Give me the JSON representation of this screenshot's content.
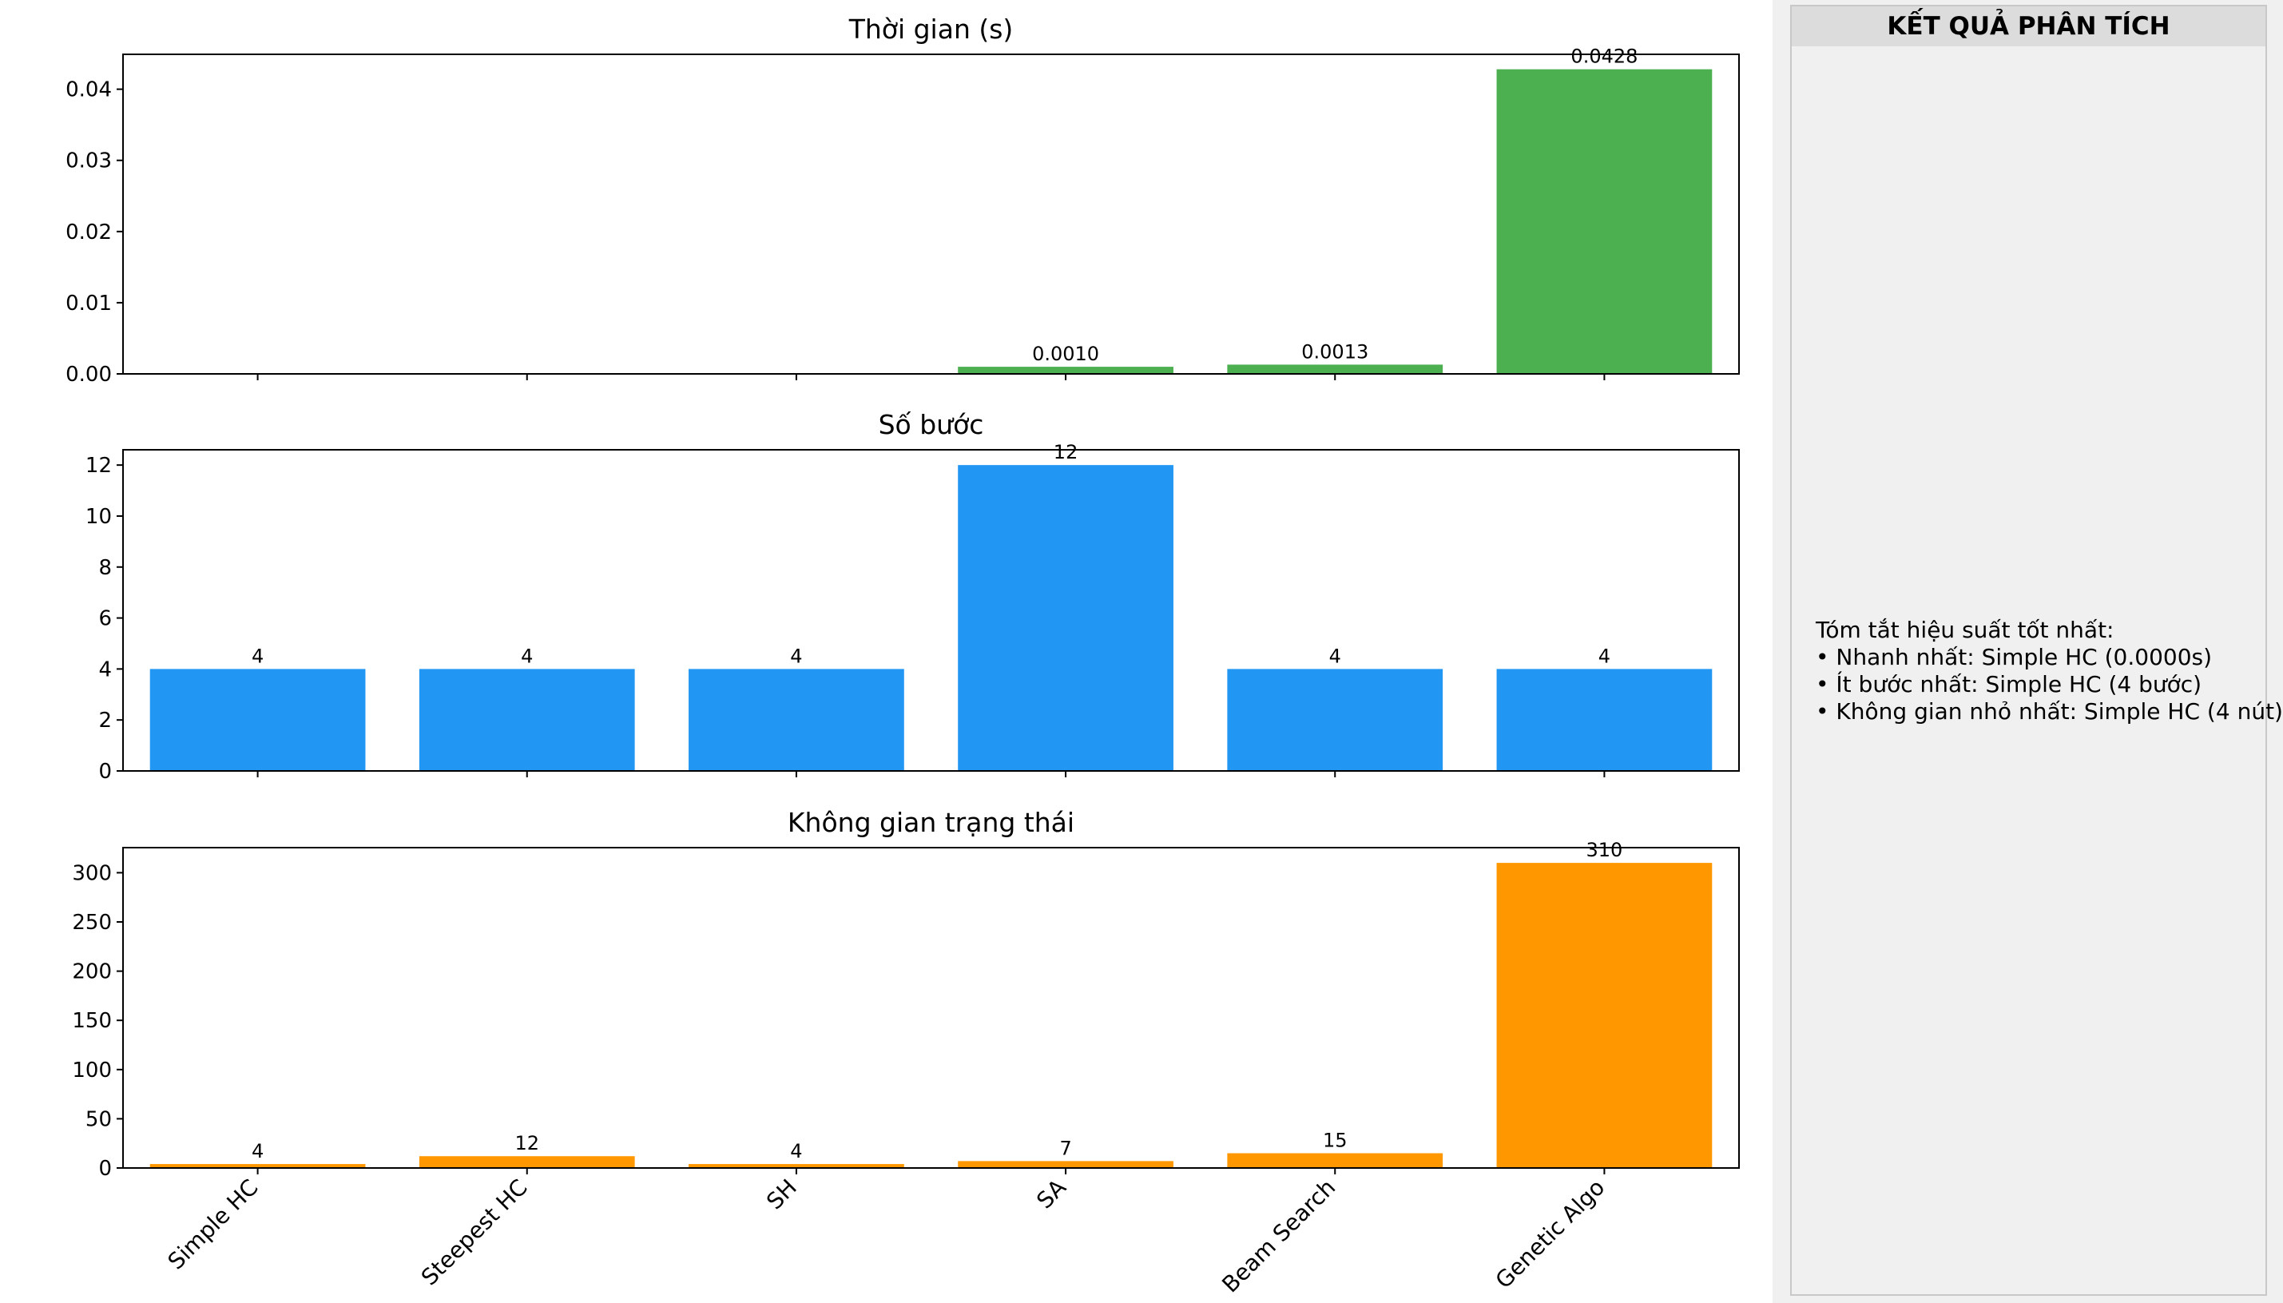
{
  "panel": {
    "title": "KẾT QUẢ PHÂN TÍCH",
    "summary_lines": [
      "Tóm tắt hiệu suất tốt nhất:",
      "• Nhanh nhất: Simple HC (0.0000s)",
      "• Ít bước nhất: Simple HC (4 bước)",
      "• Không gian nhỏ nhất: Simple HC (4 nút)"
    ]
  },
  "chart_data": [
    {
      "type": "bar",
      "title": "Thời gian (s)",
      "categories": [
        "Simple HC",
        "Steepest HC",
        "SH",
        "SA",
        "Beam Search",
        "Genetic Algo"
      ],
      "values": [
        0.0,
        0.0,
        0.0,
        0.001,
        0.0013,
        0.0428
      ],
      "data_labels": [
        "",
        "",
        "",
        "0.0010",
        "0.0013",
        "0.0428"
      ],
      "yticks": [
        "0.00",
        "0.01",
        "0.02",
        "0.03",
        "0.04"
      ],
      "ytick_values": [
        0,
        0.01,
        0.02,
        0.03,
        0.04
      ],
      "ylim": [
        0,
        0.0449
      ],
      "color": "#4caf50",
      "show_xticklabels": false
    },
    {
      "type": "bar",
      "title": "Số bước",
      "categories": [
        "Simple HC",
        "Steepest HC",
        "SH",
        "SA",
        "Beam Search",
        "Genetic Algo"
      ],
      "values": [
        4,
        4,
        4,
        12,
        4,
        4
      ],
      "data_labels": [
        "4",
        "4",
        "4",
        "12",
        "4",
        "4"
      ],
      "yticks": [
        "0",
        "2",
        "4",
        "6",
        "8",
        "10",
        "12"
      ],
      "ytick_values": [
        0,
        2,
        4,
        6,
        8,
        10,
        12
      ],
      "ylim": [
        0,
        12.6
      ],
      "color": "#2196f3",
      "show_xticklabels": false
    },
    {
      "type": "bar",
      "title": "Không gian trạng thái",
      "categories": [
        "Simple HC",
        "Steepest HC",
        "SH",
        "SA",
        "Beam Search",
        "Genetic Algo"
      ],
      "values": [
        4,
        12,
        4,
        7,
        15,
        310
      ],
      "data_labels": [
        "4",
        "12",
        "4",
        "7",
        "15",
        "310"
      ],
      "yticks": [
        "0",
        "50",
        "100",
        "150",
        "200",
        "250",
        "300"
      ],
      "ytick_values": [
        0,
        50,
        100,
        150,
        200,
        250,
        300
      ],
      "ylim": [
        0,
        325.5
      ],
      "color": "#ff9800",
      "show_xticklabels": true
    }
  ]
}
